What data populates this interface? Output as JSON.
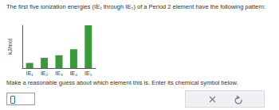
{
  "question": "The first five ionization energies (IE₁ through IE₅) of a Period 2 element have the following pattern:",
  "chart_data": {
    "type": "bar",
    "y_label": "kJ/mol",
    "categories": [
      "IE₁",
      "IE₂",
      "IE₃",
      "IE₄",
      "IE₅"
    ],
    "values": [
      12,
      24,
      30,
      44,
      100
    ],
    "color": "#3a9a3a",
    "ylim": [
      0,
      100
    ],
    "grid": false,
    "tick_labels": "x"
  },
  "prompt": "Make a reasonable guess about which element this is. Enter its chemical symbol below."
}
